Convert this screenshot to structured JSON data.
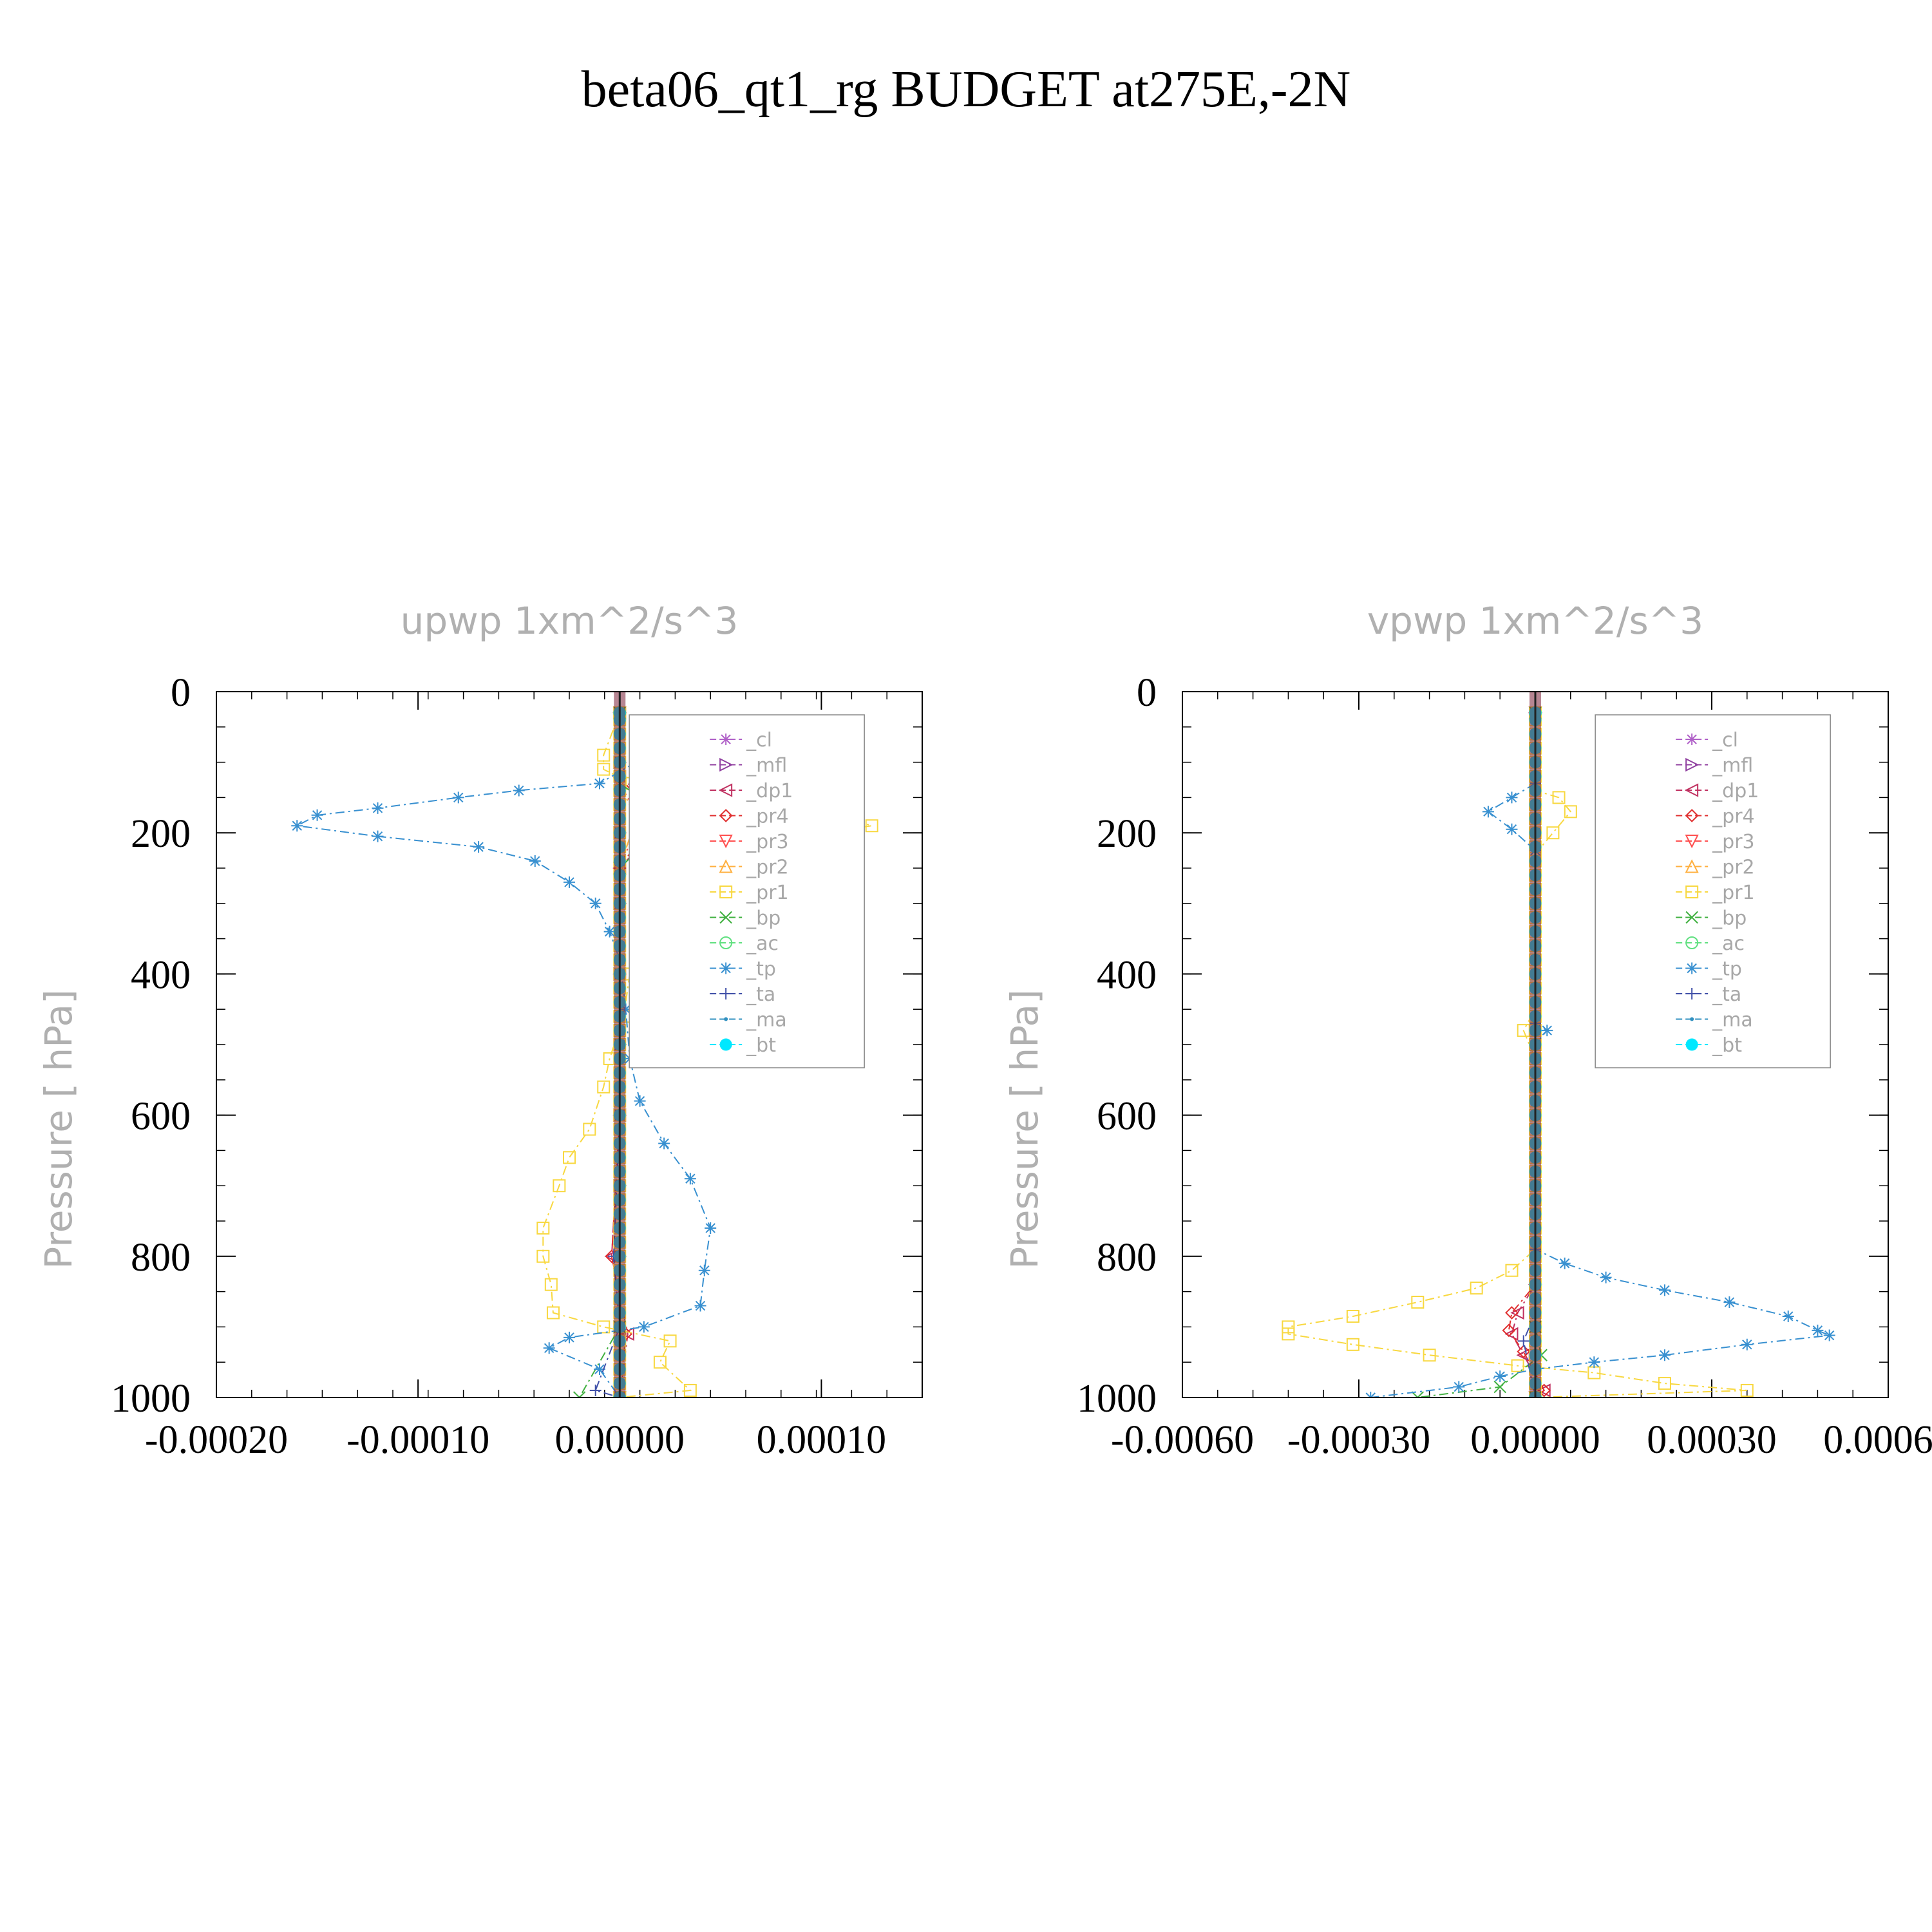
{
  "figure_title": "beta06_qt1_rg  BUDGET at275E,-2N",
  "chart_data": [
    {
      "type": "line",
      "title": "upwp    1xm^2/s^3",
      "xlabel": "",
      "ylabel": "Pressure  [ hPa]",
      "xlim": [
        -0.0002,
        0.00015
      ],
      "ylim": [
        0,
        1000
      ],
      "y_inverted": true,
      "xticks": [
        -0.0002,
        -0.0001,
        0.0,
        0.0001
      ],
      "xtick_labels": [
        "-0.00020",
        "-0.00010",
        "0.00000",
        "0.00010"
      ],
      "yticks": [
        0,
        200,
        400,
        600,
        800,
        1000
      ],
      "ytick_labels": [
        "0",
        "200",
        "400",
        "600",
        "800",
        "1000"
      ],
      "legend_position": "top-right",
      "series": [
        {
          "name": "_cl",
          "color": "#b060c8",
          "marker": "star",
          "values": [
            [
              0,
              30
            ],
            [
              0,
              100
            ],
            [
              0,
              200
            ],
            [
              0,
              300
            ],
            [
              0,
              400
            ],
            [
              0,
              500
            ],
            [
              0,
              600
            ],
            [
              0,
              700
            ],
            [
              0,
              800
            ],
            [
              0,
              900
            ],
            [
              0,
              1000
            ]
          ]
        },
        {
          "name": "_mfl",
          "color": "#9040a0",
          "marker": "tri-right",
          "values": [
            [
              0,
              30
            ],
            [
              0,
              100
            ],
            [
              0,
              200
            ],
            [
              0,
              300
            ],
            [
              0,
              400
            ],
            [
              0,
              500
            ],
            [
              0,
              600
            ],
            [
              0,
              700
            ],
            [
              0,
              800
            ],
            [
              0,
              900
            ],
            [
              0,
              1000
            ]
          ]
        },
        {
          "name": "_dp1",
          "color": "#c03060",
          "marker": "tri-left",
          "values": [
            [
              0,
              30
            ],
            [
              0,
              120
            ],
            [
              2e-05,
              170
            ],
            [
              1.6e-05,
              200
            ],
            [
              0,
              250
            ],
            [
              0,
              400
            ],
            [
              0,
              600
            ],
            [
              -4e-06,
              800
            ],
            [
              4e-06,
              910
            ],
            [
              0,
              1000
            ]
          ]
        },
        {
          "name": "_pr4",
          "color": "#e03030",
          "marker": "diamond",
          "values": [
            [
              0,
              30
            ],
            [
              0,
              120
            ],
            [
              1.4e-05,
              170
            ],
            [
              1.2e-05,
              200
            ],
            [
              0,
              250
            ],
            [
              0,
              400
            ],
            [
              0,
              600
            ],
            [
              -4e-06,
              800
            ],
            [
              3e-06,
              910
            ],
            [
              0,
              1000
            ]
          ]
        },
        {
          "name": "_pr3",
          "color": "#ff5050",
          "marker": "tri-down",
          "values": [
            [
              0,
              30
            ],
            [
              0,
              130
            ],
            [
              1e-05,
              180
            ],
            [
              0,
              250
            ],
            [
              0,
              1000
            ]
          ]
        },
        {
          "name": "_pr2",
          "color": "#ffb040",
          "marker": "tri-up",
          "values": [
            [
              0,
              30
            ],
            [
              0,
              130
            ],
            [
              8e-06,
              180
            ],
            [
              0,
              250
            ],
            [
              0,
              1000
            ]
          ]
        },
        {
          "name": "_pr1",
          "color": "#f8d840",
          "marker": "square",
          "values": [
            [
              0,
              30
            ],
            [
              -8e-06,
              90
            ],
            [
              -8e-06,
              110
            ],
            [
              6e-06,
              130
            ],
            [
              5.5e-05,
              150
            ],
            [
              9e-05,
              160
            ],
            [
              0.000125,
              190
            ],
            [
              7.5e-05,
              210
            ],
            [
              3.5e-05,
              235
            ],
            [
              2e-05,
              280
            ],
            [
              1e-05,
              340
            ],
            [
              5e-06,
              400
            ],
            [
              2e-06,
              460
            ],
            [
              -5e-06,
              520
            ],
            [
              -8e-06,
              560
            ],
            [
              -1.5e-05,
              620
            ],
            [
              -2.5e-05,
              660
            ],
            [
              -3e-05,
              700
            ],
            [
              -3.8e-05,
              760
            ],
            [
              -3.8e-05,
              800
            ],
            [
              -3.4e-05,
              840
            ],
            [
              -3.3e-05,
              880
            ],
            [
              -8e-06,
              900
            ],
            [
              2.5e-05,
              920
            ],
            [
              2e-05,
              950
            ],
            [
              3.5e-05,
              990
            ],
            [
              0,
              1000
            ]
          ]
        },
        {
          "name": "_bp",
          "color": "#40b040",
          "marker": "x",
          "values": [
            [
              0,
              30
            ],
            [
              0,
              130
            ],
            [
              2.5e-05,
              180
            ],
            [
              0,
              250
            ],
            [
              0,
              900
            ],
            [
              -2e-05,
              1000
            ]
          ]
        },
        {
          "name": "_ac",
          "color": "#60e080",
          "marker": "circle",
          "values": [
            [
              0,
              30
            ],
            [
              0,
              1000
            ]
          ]
        },
        {
          "name": "_tp",
          "color": "#3890d0",
          "marker": "asterisk",
          "values": [
            [
              8e-06,
              100
            ],
            [
              -1e-05,
              130
            ],
            [
              -5e-05,
              140
            ],
            [
              -8e-05,
              150
            ],
            [
              -0.00012,
              165
            ],
            [
              -0.00015,
              175
            ],
            [
              -0.00016,
              190
            ],
            [
              -0.00012,
              205
            ],
            [
              -7e-05,
              220
            ],
            [
              -4.2e-05,
              240
            ],
            [
              -2.5e-05,
              270
            ],
            [
              -1.2e-05,
              300
            ],
            [
              -5e-06,
              340
            ],
            [
              0,
              380
            ],
            [
              3e-06,
              450
            ],
            [
              5e-06,
              520
            ],
            [
              1e-05,
              580
            ],
            [
              2.2e-05,
              640
            ],
            [
              3.5e-05,
              690
            ],
            [
              4.5e-05,
              760
            ],
            [
              4.2e-05,
              820
            ],
            [
              4e-05,
              870
            ],
            [
              1.2e-05,
              900
            ],
            [
              -2.5e-05,
              915
            ],
            [
              -3.5e-05,
              930
            ],
            [
              -1e-05,
              960
            ],
            [
              0,
              1000
            ]
          ]
        },
        {
          "name": "_ta",
          "color": "#4050a8",
          "marker": "plus",
          "values": [
            [
              0,
              30
            ],
            [
              0,
              200
            ],
            [
              0,
              600
            ],
            [
              -3e-06,
              800
            ],
            [
              0,
              900
            ],
            [
              -1.2e-05,
              990
            ],
            [
              0,
              1000
            ]
          ]
        },
        {
          "name": "_ma",
          "color": "#3090c0",
          "marker": "dot",
          "values": [
            [
              0,
              30
            ],
            [
              0,
              1000
            ]
          ]
        },
        {
          "name": "_bt",
          "color": "#00e8ff",
          "marker": "filled-circle",
          "values": [
            [
              0,
              30
            ],
            [
              0,
              1000
            ]
          ]
        }
      ]
    },
    {
      "type": "line",
      "title": "vpwp    1xm^2/s^3",
      "xlabel": "",
      "ylabel": "Pressure  [ hPa]",
      "xlim": [
        -0.0006,
        0.0006
      ],
      "ylim": [
        0,
        1000
      ],
      "y_inverted": true,
      "xticks": [
        -0.0006,
        -0.0003,
        0.0,
        0.0003,
        0.0006
      ],
      "xtick_labels": [
        "-0.00060",
        "-0.00030",
        "0.00000",
        "0.00030",
        "0.00060"
      ],
      "yticks": [
        0,
        200,
        400,
        600,
        800,
        1000
      ],
      "ytick_labels": [
        "0",
        "200",
        "400",
        "600",
        "800",
        "1000"
      ],
      "legend_position": "top-right",
      "series": [
        {
          "name": "_cl",
          "color": "#b060c8",
          "marker": "star",
          "values": [
            [
              0,
              30
            ],
            [
              0,
              1000
            ]
          ]
        },
        {
          "name": "_mfl",
          "color": "#9040a0",
          "marker": "tri-right",
          "values": [
            [
              0,
              30
            ],
            [
              0,
              1000
            ]
          ]
        },
        {
          "name": "_dp1",
          "color": "#c03060",
          "marker": "tri-left",
          "values": [
            [
              0,
              30
            ],
            [
              0,
              840
            ],
            [
              -3e-05,
              880
            ],
            [
              -4e-05,
              910
            ],
            [
              -2e-05,
              940
            ],
            [
              1.5e-05,
              990
            ],
            [
              0,
              1000
            ]
          ]
        },
        {
          "name": "_pr4",
          "color": "#e03030",
          "marker": "diamond",
          "values": [
            [
              0,
              30
            ],
            [
              0,
              840
            ],
            [
              -4e-05,
              880
            ],
            [
              -4.5e-05,
              905
            ],
            [
              -2e-05,
              935
            ],
            [
              1.5e-05,
              990
            ],
            [
              0,
              1000
            ]
          ]
        },
        {
          "name": "_pr3",
          "color": "#ff5050",
          "marker": "tri-down",
          "values": [
            [
              0,
              30
            ],
            [
              0,
              1000
            ]
          ]
        },
        {
          "name": "_pr2",
          "color": "#ffb040",
          "marker": "tri-up",
          "values": [
            [
              0,
              30
            ],
            [
              0,
              1000
            ]
          ]
        },
        {
          "name": "_pr1",
          "color": "#f8d840",
          "marker": "square",
          "values": [
            [
              0,
              30
            ],
            [
              0,
              140
            ],
            [
              4e-05,
              150
            ],
            [
              6e-05,
              170
            ],
            [
              3e-05,
              200
            ],
            [
              0,
              230
            ],
            [
              0,
              450
            ],
            [
              -2e-05,
              480
            ],
            [
              0,
              520
            ],
            [
              0,
              790
            ],
            [
              -4e-05,
              820
            ],
            [
              -0.0001,
              845
            ],
            [
              -0.0002,
              865
            ],
            [
              -0.00031,
              885
            ],
            [
              -0.00042,
              900
            ],
            [
              -0.00042,
              910
            ],
            [
              -0.00031,
              925
            ],
            [
              -0.00018,
              940
            ],
            [
              -3e-05,
              955
            ],
            [
              0.0001,
              965
            ],
            [
              0.00022,
              980
            ],
            [
              0.00036,
              990
            ],
            [
              0,
              1000
            ]
          ]
        },
        {
          "name": "_bp",
          "color": "#40b040",
          "marker": "x",
          "values": [
            [
              0,
              30
            ],
            [
              0,
              900
            ],
            [
              1e-05,
              940
            ],
            [
              -6e-05,
              985
            ],
            [
              -0.0002,
              1000
            ],
            [
              0,
              1000
            ]
          ]
        },
        {
          "name": "_ac",
          "color": "#60e080",
          "marker": "circle",
          "values": [
            [
              0,
              30
            ],
            [
              0,
              1000
            ]
          ]
        },
        {
          "name": "_tp",
          "color": "#3890d0",
          "marker": "asterisk",
          "values": [
            [
              0,
              130
            ],
            [
              -4e-05,
              150
            ],
            [
              -8e-05,
              170
            ],
            [
              -4e-05,
              195
            ],
            [
              0,
              225
            ],
            [
              0,
              470
            ],
            [
              2e-05,
              480
            ],
            [
              0,
              500
            ],
            [
              0,
              790
            ],
            [
              5e-05,
              810
            ],
            [
              0.00012,
              830
            ],
            [
              0.00022,
              848
            ],
            [
              0.00033,
              865
            ],
            [
              0.00043,
              885
            ],
            [
              0.00048,
              905
            ],
            [
              0.0005,
              912
            ],
            [
              0.00036,
              925
            ],
            [
              0.00022,
              940
            ],
            [
              0.0001,
              950
            ],
            [
              0,
              960
            ],
            [
              -6e-05,
              970
            ],
            [
              -0.00013,
              985
            ],
            [
              -0.00028,
              1000
            ]
          ]
        },
        {
          "name": "_ta",
          "color": "#4050a8",
          "marker": "plus",
          "values": [
            [
              0,
              30
            ],
            [
              0,
              880
            ],
            [
              -2e-05,
              920
            ],
            [
              0,
              1000
            ]
          ]
        },
        {
          "name": "_ma",
          "color": "#3090c0",
          "marker": "dot",
          "values": [
            [
              0,
              30
            ],
            [
              0,
              1000
            ]
          ]
        },
        {
          "name": "_bt",
          "color": "#00e8ff",
          "marker": "filled-circle",
          "values": [
            [
              0,
              30
            ],
            [
              0,
              1000
            ]
          ]
        }
      ]
    }
  ]
}
